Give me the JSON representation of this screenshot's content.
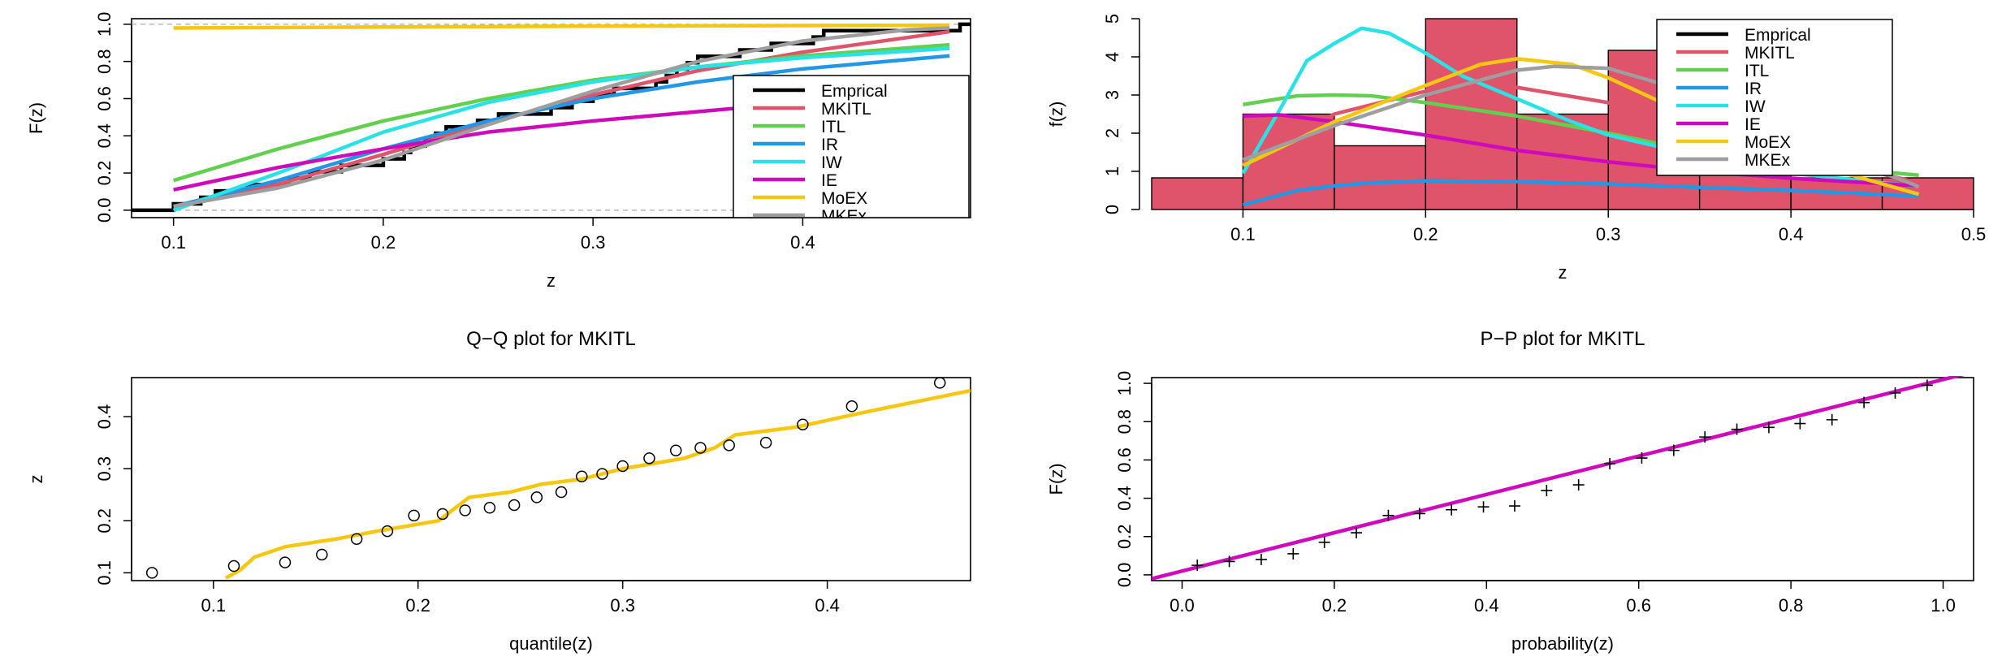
{
  "chart_data": [
    {
      "id": "cdf",
      "type": "line",
      "title": "",
      "xlabel": "z",
      "ylabel": "F(z)",
      "xlim": [
        0.08,
        0.48
      ],
      "ylim": [
        -0.04,
        1.03
      ],
      "xticks": [
        "0.1",
        "0.2",
        "0.3",
        "0.4"
      ],
      "yticks": [
        "0.0",
        "0.2",
        "0.4",
        "0.6",
        "0.8",
        "1.0"
      ],
      "xtick_values": [
        0.1,
        0.2,
        0.3,
        0.4
      ],
      "ytick_values": [
        0,
        0.2,
        0.4,
        0.6,
        0.8,
        1.0
      ],
      "reference_lines_y": [
        0,
        1
      ],
      "legend_position": "bottom-right",
      "legend": [
        "Emprical",
        "MKITL",
        "ITL",
        "IR",
        "IW",
        "IE",
        "MoEX",
        "MKEx"
      ],
      "ecdf": {
        "name": "Emprical",
        "color": "#000000",
        "steps": [
          0.1,
          0.113,
          0.12,
          0.135,
          0.155,
          0.165,
          0.18,
          0.2,
          0.21,
          0.213,
          0.22,
          0.225,
          0.23,
          0.245,
          0.255,
          0.28,
          0.29,
          0.3,
          0.31,
          0.33,
          0.335,
          0.34,
          0.345,
          0.35,
          0.37,
          0.385,
          0.405,
          0.41,
          0.475
        ],
        "x_start": 0.08,
        "x_end": 0.48
      },
      "series": [
        {
          "name": "MKITL",
          "color": "#DF536B",
          "x": [
            0.1,
            0.15,
            0.2,
            0.25,
            0.3,
            0.35,
            0.4,
            0.47
          ],
          "values": [
            0.02,
            0.14,
            0.3,
            0.47,
            0.62,
            0.75,
            0.85,
            0.96
          ]
        },
        {
          "name": "ITL",
          "color": "#61D04F",
          "x": [
            0.1,
            0.15,
            0.2,
            0.25,
            0.3,
            0.35,
            0.4,
            0.47
          ],
          "values": [
            0.16,
            0.33,
            0.48,
            0.6,
            0.7,
            0.77,
            0.83,
            0.89
          ]
        },
        {
          "name": "IR",
          "color": "#2297E6",
          "x": [
            0.1,
            0.15,
            0.2,
            0.25,
            0.3,
            0.35,
            0.4,
            0.47
          ],
          "values": [
            0.02,
            0.16,
            0.33,
            0.48,
            0.6,
            0.69,
            0.76,
            0.83
          ]
        },
        {
          "name": "IW",
          "color": "#28E2E5",
          "x": [
            0.1,
            0.15,
            0.2,
            0.25,
            0.3,
            0.35,
            0.4,
            0.47
          ],
          "values": [
            0.0,
            0.2,
            0.42,
            0.58,
            0.69,
            0.77,
            0.82,
            0.87
          ]
        },
        {
          "name": "IE",
          "color": "#CD0BBC",
          "x": [
            0.1,
            0.15,
            0.2,
            0.25,
            0.3,
            0.35,
            0.4,
            0.47
          ],
          "values": [
            0.11,
            0.23,
            0.33,
            0.42,
            0.48,
            0.53,
            0.58,
            0.62
          ]
        },
        {
          "name": "MoEX",
          "color": "#F5C710",
          "x": [
            0.1,
            0.2,
            0.3,
            0.4,
            0.47
          ],
          "values": [
            0.98,
            0.985,
            0.99,
            0.993,
            0.995
          ]
        },
        {
          "name": "MKEx",
          "color": "#9E9E9E",
          "x": [
            0.1,
            0.15,
            0.2,
            0.25,
            0.3,
            0.35,
            0.4,
            0.45,
            0.47
          ],
          "values": [
            0.02,
            0.12,
            0.27,
            0.46,
            0.64,
            0.8,
            0.91,
            0.97,
            0.98
          ]
        }
      ]
    },
    {
      "id": "pdf",
      "type": "bar",
      "title": "",
      "xlabel": "z",
      "ylabel": "f(z)",
      "xlim": [
        0.05,
        0.5
      ],
      "ylim": [
        0,
        5
      ],
      "xticks": [
        "0.1",
        "0.2",
        "0.3",
        "0.4",
        "0.5"
      ],
      "yticks": [
        "0",
        "1",
        "2",
        "3",
        "4",
        "5"
      ],
      "xtick_values": [
        0.1,
        0.2,
        0.3,
        0.4,
        0.5
      ],
      "ytick_values": [
        0,
        1,
        2,
        3,
        4,
        5
      ],
      "legend_position": "top-right",
      "legend": [
        "Emprical",
        "MKITL",
        "ITL",
        "IR",
        "IW",
        "IE",
        "MoEX",
        "MKEx"
      ],
      "histogram": {
        "bin_edges": [
          0.05,
          0.1,
          0.15,
          0.2,
          0.25,
          0.3,
          0.35,
          0.4,
          0.45,
          0.5
        ],
        "values": [
          0.83,
          2.5,
          1.67,
          5.0,
          2.5,
          4.17,
          1.67,
          0.83,
          0.83
        ],
        "color": "#DF536B"
      },
      "series": [
        {
          "name": "MKITL",
          "color": "#DF536B",
          "x": [
            0.1,
            0.15,
            0.2,
            0.25,
            0.3,
            0.35,
            0.4,
            0.47
          ],
          "values": [
            1.2,
            2.5,
            3.1,
            3.2,
            2.8,
            2.2,
            1.5,
            0.7
          ]
        },
        {
          "name": "ITL",
          "color": "#61D04F",
          "x": [
            0.1,
            0.13,
            0.15,
            0.17,
            0.2,
            0.25,
            0.3,
            0.35,
            0.4,
            0.47
          ],
          "values": [
            2.75,
            2.98,
            3.0,
            2.98,
            2.8,
            2.45,
            2.0,
            1.5,
            1.2,
            0.9
          ]
        },
        {
          "name": "IR",
          "color": "#2297E6",
          "x": [
            0.1,
            0.13,
            0.15,
            0.17,
            0.2,
            0.25,
            0.3,
            0.35,
            0.4,
            0.47
          ],
          "values": [
            0.12,
            0.5,
            0.62,
            0.7,
            0.75,
            0.73,
            0.67,
            0.58,
            0.5,
            0.35
          ]
        },
        {
          "name": "IW",
          "color": "#28E2E5",
          "x": [
            0.1,
            0.12,
            0.135,
            0.15,
            0.165,
            0.18,
            0.2,
            0.22,
            0.25,
            0.28,
            0.3,
            0.35,
            0.4,
            0.47
          ],
          "values": [
            0.95,
            2.6,
            3.9,
            4.35,
            4.75,
            4.62,
            4.1,
            3.5,
            2.9,
            2.3,
            1.95,
            1.4,
            0.95,
            0.6
          ]
        },
        {
          "name": "IE",
          "color": "#CD0BBC",
          "x": [
            0.1,
            0.12,
            0.15,
            0.2,
            0.25,
            0.3,
            0.35,
            0.4,
            0.47
          ],
          "values": [
            2.45,
            2.48,
            2.3,
            1.95,
            1.55,
            1.25,
            1.0,
            0.82,
            0.62
          ]
        },
        {
          "name": "MoEX",
          "color": "#F5C710",
          "x": [
            0.1,
            0.15,
            0.2,
            0.23,
            0.25,
            0.28,
            0.3,
            0.35,
            0.4,
            0.47
          ],
          "values": [
            1.15,
            2.3,
            3.25,
            3.8,
            3.95,
            3.8,
            3.45,
            2.35,
            1.35,
            0.4
          ]
        },
        {
          "name": "MKEx",
          "color": "#9E9E9E",
          "x": [
            0.1,
            0.15,
            0.2,
            0.25,
            0.27,
            0.3,
            0.35,
            0.4,
            0.47
          ],
          "values": [
            1.3,
            2.2,
            3.0,
            3.65,
            3.75,
            3.7,
            3.0,
            1.9,
            0.6
          ]
        }
      ]
    },
    {
      "id": "qq",
      "type": "scatter",
      "title": "Q−Q plot for  MKITL",
      "xlabel": "quantile(z)",
      "ylabel": "z",
      "xlim": [
        0.06,
        0.47
      ],
      "ylim": [
        0.085,
        0.475
      ],
      "xticks": [
        "0.1",
        "0.2",
        "0.3",
        "0.4"
      ],
      "yticks": [
        "0.1",
        "0.2",
        "0.3",
        "0.4"
      ],
      "xtick_values": [
        0.1,
        0.2,
        0.3,
        0.4
      ],
      "ytick_values": [
        0.1,
        0.2,
        0.3,
        0.4
      ],
      "points": {
        "marker": "circle",
        "x": [
          0.07,
          0.11,
          0.135,
          0.153,
          0.17,
          0.185,
          0.198,
          0.212,
          0.223,
          0.235,
          0.247,
          0.258,
          0.27,
          0.28,
          0.29,
          0.3,
          0.313,
          0.326,
          0.338,
          0.352,
          0.37,
          0.388,
          0.412,
          0.455
        ],
        "y": [
          0.1,
          0.113,
          0.12,
          0.135,
          0.165,
          0.18,
          0.21,
          0.213,
          0.22,
          0.225,
          0.23,
          0.245,
          0.255,
          0.285,
          0.29,
          0.305,
          0.32,
          0.335,
          0.34,
          0.345,
          0.35,
          0.385,
          0.42,
          0.465
        ]
      },
      "series": [
        {
          "name": "reference",
          "color": "#F5C710",
          "x": [
            0.106,
            0.113,
            0.12,
            0.135,
            0.16,
            0.18,
            0.21,
            0.225,
            0.245,
            0.26,
            0.28,
            0.3,
            0.33,
            0.345,
            0.355,
            0.385,
            0.42,
            0.47
          ],
          "values": [
            0.09,
            0.105,
            0.13,
            0.15,
            0.165,
            0.18,
            0.2,
            0.245,
            0.255,
            0.27,
            0.28,
            0.3,
            0.32,
            0.34,
            0.365,
            0.38,
            0.41,
            0.45
          ]
        }
      ]
    },
    {
      "id": "pp",
      "type": "scatter",
      "title": "P−P plot for  MKITL",
      "xlabel": "probability(z)",
      "ylabel": "F(z)",
      "xlim": [
        -0.04,
        1.04
      ],
      "ylim": [
        -0.03,
        1.03
      ],
      "xticks": [
        "0.0",
        "0.2",
        "0.4",
        "0.6",
        "0.8",
        "1.0"
      ],
      "yticks": [
        "0.0",
        "0.2",
        "0.4",
        "0.6",
        "0.8",
        "1.0"
      ],
      "xtick_values": [
        0,
        0.2,
        0.4,
        0.6,
        0.8,
        1.0
      ],
      "ytick_values": [
        0,
        0.2,
        0.4,
        0.6,
        0.8,
        1.0
      ],
      "points": {
        "marker": "plus",
        "x": [
          0.02,
          0.062,
          0.104,
          0.146,
          0.187,
          0.229,
          0.271,
          0.312,
          0.354,
          0.396,
          0.437,
          0.479,
          0.521,
          0.562,
          0.604,
          0.646,
          0.687,
          0.729,
          0.771,
          0.812,
          0.854,
          0.896,
          0.937,
          0.979
        ],
        "y": [
          0.05,
          0.07,
          0.08,
          0.11,
          0.17,
          0.22,
          0.31,
          0.32,
          0.34,
          0.355,
          0.36,
          0.44,
          0.47,
          0.58,
          0.61,
          0.65,
          0.72,
          0.76,
          0.77,
          0.79,
          0.81,
          0.9,
          0.95,
          0.99
        ]
      },
      "series": [
        {
          "name": "reference",
          "color": "#CD0BBC",
          "x": [
            -0.04,
            1.04
          ],
          "values": [
            -0.02,
            1.06
          ]
        }
      ]
    }
  ]
}
